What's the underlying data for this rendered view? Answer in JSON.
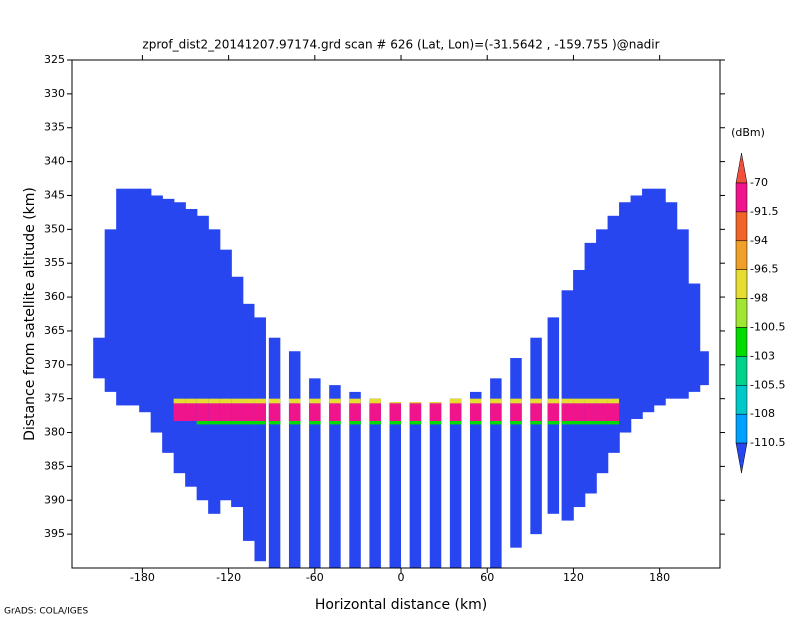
{
  "chart_data": {
    "type": "heatmap",
    "title": "zprof_dist2_20141207.97174.grd  scan # 626  (Lat, Lon)=(-31.5642 , -159.755 )@nadir",
    "x_label": "Horizontal distance (km)",
    "y_label": "Distance from satellite altitude (km)",
    "footer": "GrADS: COLA/IGES",
    "xlim": [
      -229,
      222
    ],
    "ylim": [
      325,
      400
    ],
    "y_inverted": true,
    "xticks": [
      -180,
      -120,
      -60,
      0,
      60,
      120,
      180
    ],
    "yticks": [
      325,
      330,
      335,
      340,
      345,
      350,
      355,
      360,
      365,
      370,
      375,
      380,
      385,
      390,
      395
    ],
    "background_value": -112,
    "columns": {
      "x": [
        -210,
        -202,
        -194,
        -186,
        -178,
        -170,
        -162,
        -154,
        -146,
        -138,
        -130,
        -122,
        -114,
        -106,
        -98,
        -88,
        -74,
        -60,
        -46,
        -32,
        -18,
        -4,
        10,
        24,
        38,
        52,
        66,
        80,
        94,
        106,
        116,
        124,
        132,
        140,
        148,
        156,
        164,
        172,
        180,
        188,
        196,
        204,
        210
      ],
      "top": [
        366,
        350,
        344,
        344,
        344,
        345,
        345.5,
        346,
        347,
        348,
        350,
        353,
        357,
        361,
        363,
        366,
        368,
        372,
        373,
        374,
        375,
        375.5,
        375.5,
        375.5,
        375,
        374,
        372,
        369,
        366,
        363,
        359,
        356,
        352,
        350,
        348,
        346,
        345,
        344,
        344,
        346,
        350,
        358,
        368
      ],
      "bottom": [
        372,
        374,
        376,
        376,
        377,
        380,
        383,
        386,
        388,
        390,
        392,
        390,
        391,
        396,
        399,
        400,
        400,
        400,
        400,
        400,
        400,
        400,
        400,
        400,
        400,
        400,
        400,
        397,
        395,
        392,
        393,
        391,
        389,
        386,
        383,
        380,
        378,
        377,
        376,
        375,
        375,
        374,
        373
      ],
      "width": [
        8.5,
        8.5,
        8.5,
        8.5,
        8.5,
        8.5,
        8.5,
        8.5,
        8.5,
        8.5,
        8.5,
        8.5,
        8.5,
        8,
        8,
        8,
        8,
        8,
        8,
        8,
        8,
        8,
        8,
        8,
        8,
        8,
        8,
        8,
        8,
        8,
        8.5,
        8.5,
        8.5,
        8.5,
        8.5,
        8.5,
        8.5,
        8.5,
        8.5,
        8.5,
        8.5,
        8.5,
        8.5
      ]
    },
    "layers": [
      {
        "xlim": [
          -160,
          155
        ],
        "top": 375,
        "bottom": 375.7,
        "value": -97
      },
      {
        "xlim": [
          -160,
          150
        ],
        "top": 375.7,
        "bottom": 378.3,
        "value": -85
      },
      {
        "xlim": [
          -140,
          150
        ],
        "top": 378.3,
        "bottom": 378.8,
        "value": -102
      }
    ],
    "colorbar": {
      "unit": "(dBm)",
      "levels": [
        -70,
        -91.5,
        -94,
        -96.5,
        -98,
        -100.5,
        -103,
        -105.5,
        -108,
        -110.5
      ],
      "colors": [
        "#f0503c",
        "#f0148c",
        "#f06428",
        "#f0a028",
        "#e6dc32",
        "#a0e632",
        "#00dc00",
        "#00d28c",
        "#00c8c8",
        "#00a0ff",
        "#2846f0"
      ]
    }
  }
}
